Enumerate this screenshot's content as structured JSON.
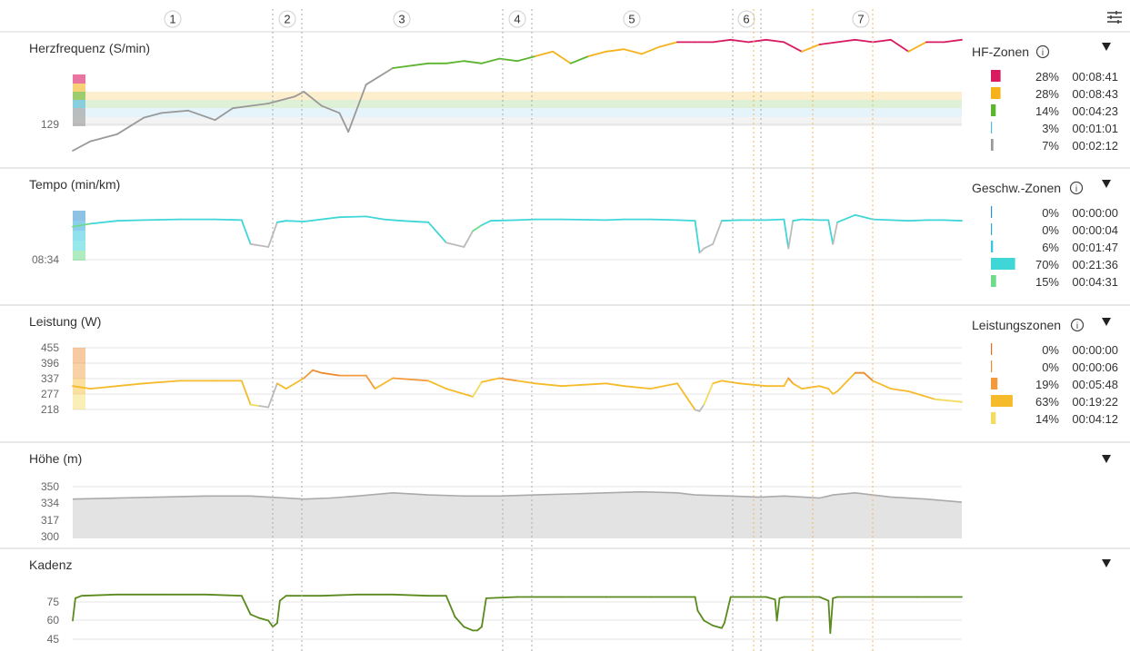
{
  "settings_icon": "sliders-icon",
  "laps": [
    "1",
    "2",
    "3",
    "4",
    "5",
    "6",
    "7"
  ],
  "colors": {
    "hf": [
      "#d81b60",
      "#f5b21a",
      "#5cb52e",
      "#4fb8e3",
      "#999999"
    ],
    "speed": [
      "#2f8fcf",
      "#2fa8d8",
      "#36c6e0",
      "#3fd6d8",
      "#6fdc8c"
    ],
    "power": [
      "#e66a1f",
      "#ee8a2e",
      "#f29a3c",
      "#f6bb2a",
      "#f2dc60"
    ],
    "altitude": "#aaaaaa",
    "cadence": "#5a8a1e"
  },
  "panels": [
    {
      "title": "Herzfrequenz (S/min)",
      "ytick_labels": [
        "129"
      ],
      "zones_title": "HF-Zonen",
      "zones": [
        {
          "pct": "28%",
          "time": "00:08:41",
          "share": 0.28
        },
        {
          "pct": "28%",
          "time": "00:08:43",
          "share": 0.28
        },
        {
          "pct": "14%",
          "time": "00:04:23",
          "share": 0.14
        },
        {
          "pct": "3%",
          "time": "00:01:01",
          "share": 0.03
        },
        {
          "pct": "7%",
          "time": "00:02:12",
          "share": 0.07
        }
      ]
    },
    {
      "title": "Tempo (min/km)",
      "ytick_labels": [
        "08:34"
      ],
      "zones_title": "Geschw.-Zonen",
      "zones": [
        {
          "pct": "0%",
          "time": "00:00:00",
          "share": 0.0
        },
        {
          "pct": "0%",
          "time": "00:00:04",
          "share": 0.0
        },
        {
          "pct": "6%",
          "time": "00:01:47",
          "share": 0.06
        },
        {
          "pct": "70%",
          "time": "00:21:36",
          "share": 0.7
        },
        {
          "pct": "15%",
          "time": "00:04:31",
          "share": 0.15
        }
      ]
    },
    {
      "title": "Leistung (W)",
      "ytick_labels": [
        "455",
        "396",
        "337",
        "277",
        "218"
      ],
      "zones_title": "Leistungszonen",
      "zones": [
        {
          "pct": "0%",
          "time": "00:00:00",
          "share": 0.0
        },
        {
          "pct": "0%",
          "time": "00:00:06",
          "share": 0.0
        },
        {
          "pct": "19%",
          "time": "00:05:48",
          "share": 0.19
        },
        {
          "pct": "63%",
          "time": "00:19:22",
          "share": 0.63
        },
        {
          "pct": "14%",
          "time": "00:04:12",
          "share": 0.14
        }
      ]
    },
    {
      "title": "Höhe (m)",
      "ytick_labels": [
        "350",
        "334",
        "317",
        "300"
      ]
    },
    {
      "title": "Kadenz",
      "ytick_labels": [
        "75",
        "60",
        "45"
      ]
    }
  ],
  "chart_data": [
    {
      "type": "line",
      "title": "Herzfrequenz (S/min)",
      "x": [
        0,
        2,
        5,
        8,
        10,
        13,
        16,
        18,
        20,
        22,
        25,
        26,
        28,
        30,
        31,
        33,
        36,
        40,
        42,
        44,
        46,
        48,
        50,
        52,
        54,
        56,
        58,
        60,
        62,
        64,
        66,
        68,
        70,
        72,
        74,
        76,
        78,
        80,
        82,
        84,
        86,
        88,
        90,
        92,
        94,
        96,
        98,
        100
      ],
      "y": [
        108,
        112,
        115,
        122,
        124,
        125,
        121,
        126,
        127,
        128,
        131,
        133,
        127,
        124,
        116,
        136,
        143,
        145,
        145,
        146,
        145,
        147,
        146,
        148,
        150,
        145,
        148,
        150,
        151,
        149,
        152,
        154,
        154,
        154,
        155,
        154,
        155,
        154,
        150,
        153,
        154,
        155,
        154,
        155,
        150,
        154,
        154,
        155
      ],
      "zones": [
        "HF-Zonen"
      ]
    },
    {
      "type": "line",
      "title": "Tempo (min/km)",
      "x": [
        0,
        2,
        5,
        8,
        12,
        16,
        19,
        20,
        21,
        22,
        23,
        24,
        26,
        30,
        33,
        35,
        37,
        40,
        42,
        44,
        45,
        46,
        47,
        50,
        52,
        55,
        60,
        62,
        65,
        68,
        70,
        70.5,
        71,
        72,
        73,
        75,
        78,
        80,
        80.5,
        81,
        82,
        84,
        85,
        85.5,
        86,
        88,
        90,
        92,
        94,
        96,
        98,
        100
      ],
      "y": [
        7.4,
        7.2,
        7.0,
        6.95,
        6.9,
        6.9,
        6.95,
        8.6,
        8.7,
        8.8,
        7.1,
        7.0,
        7.05,
        6.75,
        6.7,
        6.9,
        7.0,
        7.1,
        8.5,
        8.8,
        7.7,
        7.3,
        7.0,
        6.95,
        6.9,
        6.9,
        6.95,
        6.9,
        6.9,
        6.95,
        7.0,
        9.2,
        8.9,
        8.6,
        7.0,
        6.95,
        6.95,
        6.9,
        8.9,
        7.0,
        6.9,
        6.95,
        6.95,
        8.6,
        7.1,
        6.6,
        6.9,
        6.95,
        7.0,
        6.95,
        6.95,
        7.0
      ]
    },
    {
      "type": "line",
      "title": "Leistung (W)",
      "x": [
        0,
        2,
        5,
        8,
        12,
        16,
        19,
        20,
        21,
        22,
        23,
        24,
        26,
        27,
        28,
        30,
        33,
        34,
        35,
        36,
        38,
        40,
        42,
        44,
        45,
        46,
        48,
        50,
        52,
        55,
        60,
        62,
        65,
        68,
        70,
        70.5,
        71,
        72,
        73,
        75,
        78,
        80,
        80.5,
        81,
        82,
        84,
        85,
        85.5,
        86,
        88,
        89,
        90,
        92,
        94,
        95,
        97,
        100
      ],
      "y": [
        310,
        300,
        310,
        320,
        330,
        330,
        330,
        240,
        235,
        230,
        320,
        300,
        340,
        370,
        360,
        350,
        350,
        300,
        320,
        340,
        335,
        330,
        300,
        280,
        270,
        325,
        340,
        330,
        320,
        310,
        320,
        310,
        300,
        320,
        220,
        215,
        240,
        320,
        330,
        320,
        310,
        310,
        340,
        320,
        300,
        310,
        300,
        280,
        290,
        360,
        360,
        330,
        300,
        290,
        280,
        260,
        250
      ]
    },
    {
      "type": "area",
      "title": "Höhe (m)",
      "x": [
        0,
        5,
        10,
        15,
        20,
        22,
        24,
        26,
        29,
        32,
        36,
        40,
        44,
        48,
        52,
        56,
        60,
        64,
        68,
        70,
        74,
        77,
        77.5,
        80,
        84,
        85,
        85.5,
        88,
        92,
        96,
        100
      ],
      "y": [
        338,
        339,
        340,
        341,
        341,
        340,
        339,
        338,
        339,
        341,
        344,
        342,
        341,
        341,
        342,
        343,
        344,
        345,
        344,
        342,
        341,
        340,
        340,
        341,
        339,
        341,
        342,
        344,
        340,
        338,
        335
      ],
      "ylim": [
        300,
        350
      ]
    },
    {
      "type": "line",
      "title": "Kadenz",
      "x": [
        0,
        0.3,
        1,
        5,
        10,
        15,
        19,
        20,
        21,
        22,
        22.5,
        23,
        23.3,
        24,
        28,
        32,
        36,
        40,
        42,
        43,
        44,
        45,
        45.5,
        46,
        46.5,
        50,
        55,
        60,
        65,
        70,
        70.3,
        71,
        72,
        73,
        73.3,
        74,
        78,
        79,
        79.2,
        79.5,
        80,
        84,
        85,
        85.2,
        85.5,
        86,
        90,
        95,
        100
      ],
      "y": [
        60,
        78,
        80,
        81,
        81,
        81,
        80,
        65,
        62,
        60,
        55,
        58,
        76,
        80,
        80,
        81,
        81,
        80,
        80,
        63,
        55,
        52,
        52,
        55,
        78,
        79,
        79,
        79,
        79,
        79,
        68,
        60,
        56,
        54,
        58,
        79,
        79,
        77,
        60,
        78,
        79,
        79,
        76,
        50,
        78,
        79,
        79,
        79,
        79
      ]
    }
  ]
}
